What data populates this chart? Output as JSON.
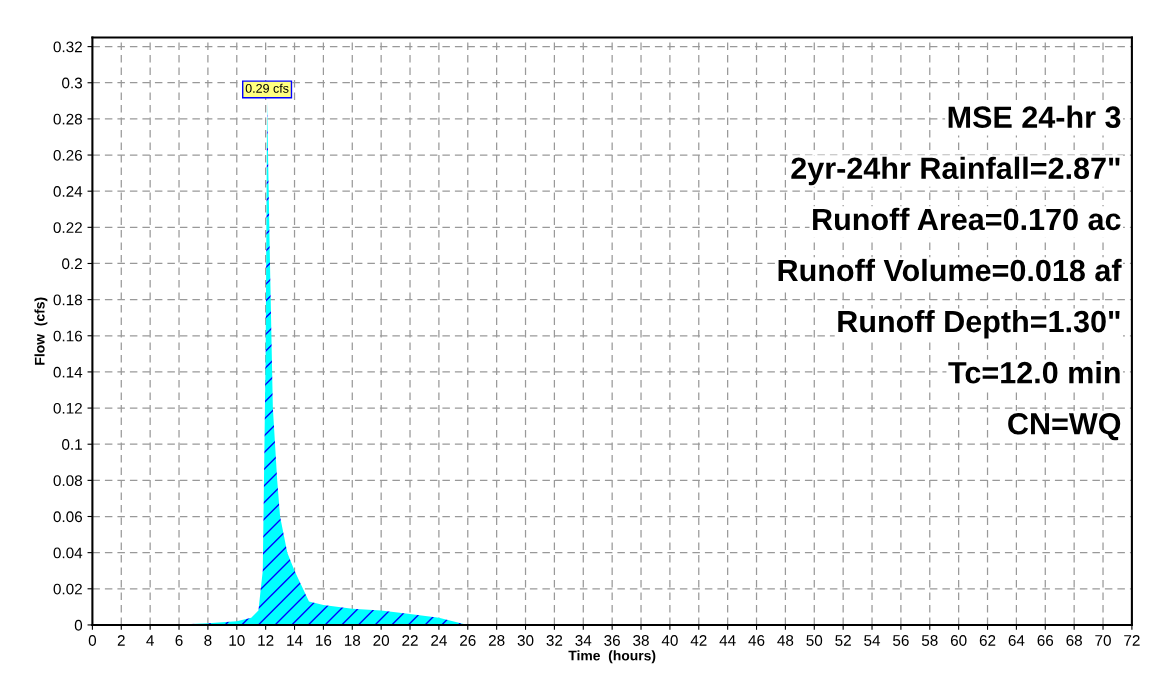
{
  "chart_data": {
    "type": "area",
    "xlabel": "Time  (hours)",
    "ylabel": "Flow  (cfs)",
    "x": [
      0,
      4,
      6,
      8,
      10,
      11,
      11.5,
      11.8,
      12.0,
      12.1,
      12.3,
      12.5,
      12.8,
      13,
      13.5,
      14,
      15,
      16,
      18,
      20,
      22,
      24,
      26,
      72
    ],
    "series": [
      {
        "color": "#00ffff",
        "values": [
          0,
          0,
          0.0003,
          0.001,
          0.002,
          0.004,
          0.008,
          0.03,
          0.15,
          0.29,
          0.2,
          0.12,
          0.08,
          0.06,
          0.04,
          0.03,
          0.013,
          0.011,
          0.009,
          0.008,
          0.006,
          0.004,
          0,
          0
        ]
      }
    ],
    "xlim": [
      0,
      72
    ],
    "ylim": [
      0,
      0.325
    ],
    "xticks": [
      0,
      2,
      4,
      6,
      8,
      10,
      12,
      14,
      16,
      18,
      20,
      22,
      24,
      26,
      28,
      30,
      32,
      34,
      36,
      38,
      40,
      42,
      44,
      46,
      48,
      50,
      52,
      54,
      56,
      58,
      60,
      62,
      64,
      66,
      68,
      70,
      72
    ],
    "yticks": [
      0,
      0.02,
      0.04,
      0.06,
      0.08,
      0.1,
      0.12,
      0.14,
      0.16,
      0.18,
      0.2,
      0.22,
      0.24,
      0.26,
      0.28,
      0.3,
      0.32
    ],
    "grid": true,
    "legend": false,
    "annotations": [
      {
        "text": "0.29 cfs",
        "x": 12.1,
        "y": 0.29
      },
      "MSE 24-hr 3",
      "2yr-24hr Rainfall=2.87\"",
      "Runoff Area=0.170 ac",
      "Runoff Volume=0.018 af",
      "Runoff Depth=1.30\"",
      "Tc=12.0 min",
      "CN=WQ"
    ]
  }
}
